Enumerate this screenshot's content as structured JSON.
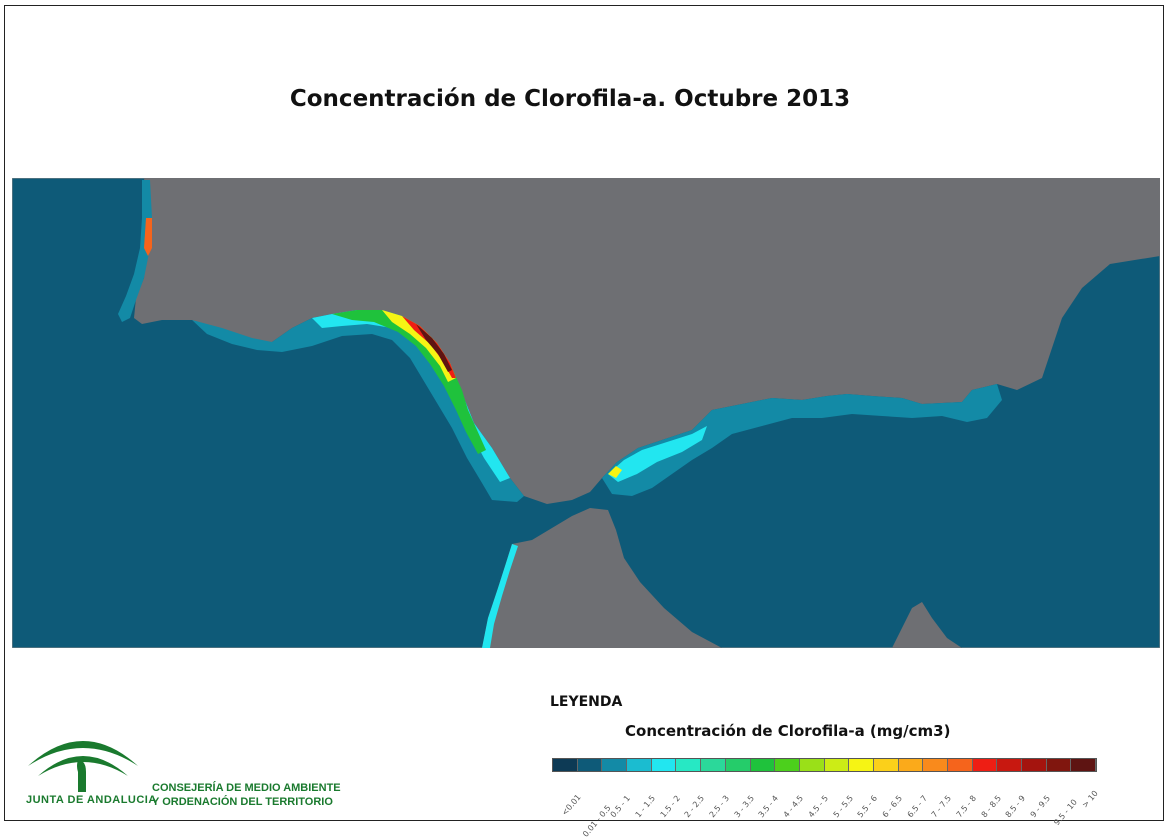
{
  "title": "Concentración de Clorofila-a. Octubre 2013",
  "legend": {
    "heading": "LEYENDA",
    "subtitle": "Concentración de Clorofila-a (mg/cm3)",
    "classes": [
      {
        "label": "<0.01",
        "color": "#0d3a55"
      },
      {
        "label": "0.01 - 0.5",
        "color": "#0e5a78"
      },
      {
        "label": "0.5 - 1",
        "color": "#138aa6"
      },
      {
        "label": "1 - 1.5",
        "color": "#1bbcd0"
      },
      {
        "label": "1.5 - 2",
        "color": "#22e6f0"
      },
      {
        "label": "2 - 2.5",
        "color": "#27e8c4"
      },
      {
        "label": "2.5 - 3",
        "color": "#2bd89a"
      },
      {
        "label": "3 - 3.5",
        "color": "#25cc6a"
      },
      {
        "label": "3.5 - 4",
        "color": "#1fc23c"
      },
      {
        "label": "4 - 4.5",
        "color": "#4cd01c"
      },
      {
        "label": "4.5 - 5",
        "color": "#9ae018"
      },
      {
        "label": "5 - 5.5",
        "color": "#ccec16"
      },
      {
        "label": "5.5 - 6",
        "color": "#f6f414"
      },
      {
        "label": "6 - 6.5",
        "color": "#fbd01a"
      },
      {
        "label": "6.5 - 7",
        "color": "#fbaa1a"
      },
      {
        "label": "7 - 7.5",
        "color": "#f98a1c"
      },
      {
        "label": "7.5 - 8",
        "color": "#f5641c"
      },
      {
        "label": "8 - 8.5",
        "color": "#ee1e14"
      },
      {
        "label": "8.5 - 9",
        "color": "#c81810"
      },
      {
        "label": "9 - 9.5",
        "color": "#a4140e"
      },
      {
        "label": "9.5 - 10",
        "color": "#80160e"
      },
      {
        "label": "> 10",
        "color": "#5e1412"
      }
    ]
  },
  "map": {
    "land_color": "#6e6f73",
    "sea_color": "#0e5a78"
  },
  "branding": {
    "junta": "JUNTA DE ANDALUCIA",
    "dept_line1": "CONSEJERÍA DE MEDIO AMBIENTE",
    "dept_line2": "Y ORDENACIÓN DEL TERRITORIO"
  }
}
